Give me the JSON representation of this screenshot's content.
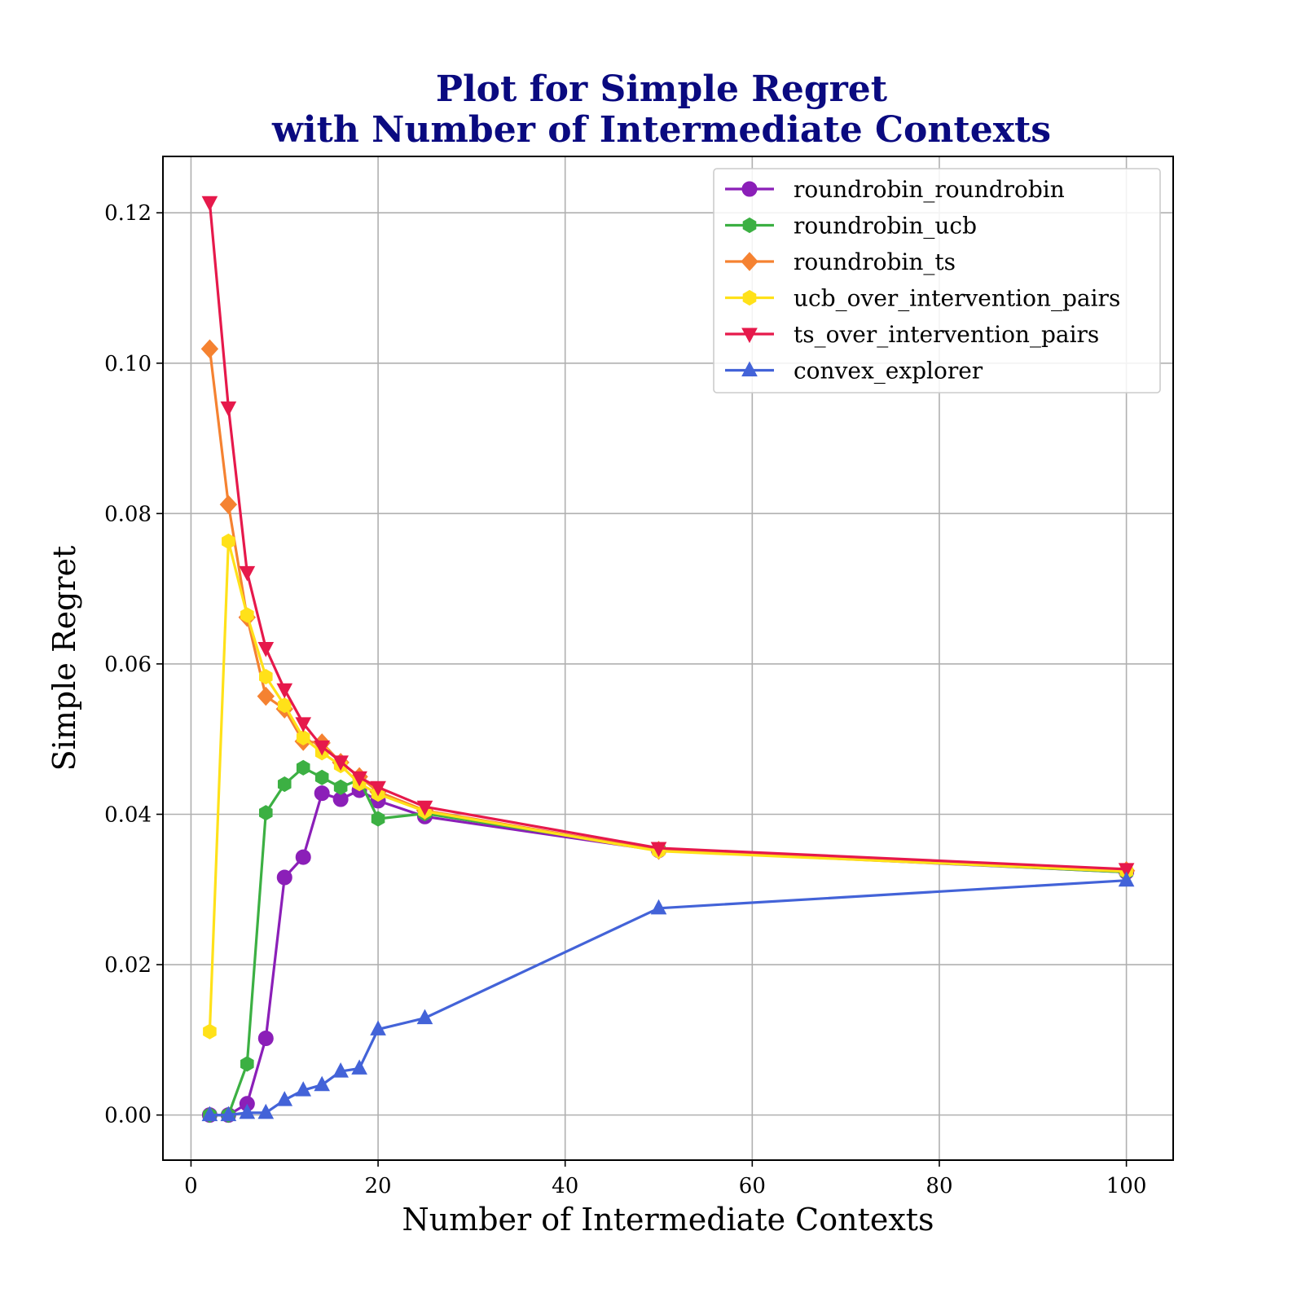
{
  "chart_data": {
    "type": "line",
    "title": [
      "Plot for Simple Regret",
      "with Number of Intermediate Contexts"
    ],
    "xlabel": "Number of Intermediate Contexts",
    "ylabel": "Simple Regret",
    "xlim": [
      -3,
      105
    ],
    "ylim": [
      -0.006,
      0.1275
    ],
    "xticks": [
      0,
      20,
      40,
      60,
      80,
      100
    ],
    "xtick_labels": [
      "0",
      "20",
      "40",
      "60",
      "80",
      "100"
    ],
    "yticks": [
      0.0,
      0.02,
      0.04,
      0.06,
      0.08,
      0.1,
      0.12
    ],
    "ytick_labels": [
      "0.00",
      "0.02",
      "0.04",
      "0.06",
      "0.08",
      "0.10",
      "0.12"
    ],
    "grid": true,
    "legend_position": "top-right",
    "series": [
      {
        "name": "roundrobin_roundrobin",
        "color": "#8b1fb8",
        "marker": "circle",
        "x": [
          2,
          4,
          6,
          8,
          10,
          12,
          14,
          16,
          18,
          20,
          25,
          50,
          100
        ],
        "y": [
          0.0,
          0.0,
          0.0015,
          0.0102,
          0.0316,
          0.0343,
          0.0428,
          0.042,
          0.0432,
          0.0418,
          0.0397,
          0.0352,
          0.0323
        ]
      },
      {
        "name": "roundrobin_ucb",
        "color": "#3cb043",
        "marker": "hexagon",
        "x": [
          2,
          4,
          6,
          8,
          10,
          12,
          14,
          16,
          18,
          20,
          25,
          50,
          100
        ],
        "y": [
          0.0,
          0.0,
          0.0068,
          0.0402,
          0.044,
          0.0462,
          0.0449,
          0.0436,
          0.0446,
          0.0394,
          0.0401,
          0.0353,
          0.0323
        ]
      },
      {
        "name": "roundrobin_ts",
        "color": "#f58231",
        "marker": "diamond",
        "x": [
          2,
          4,
          6,
          8,
          10,
          12,
          14,
          16,
          18,
          20,
          25,
          50,
          100
        ],
        "y": [
          0.1019,
          0.0812,
          0.0662,
          0.0557,
          0.054,
          0.0497,
          0.0495,
          0.0469,
          0.045,
          0.043,
          0.0405,
          0.0352,
          0.0325
        ]
      },
      {
        "name": "ucb_over_intervention_pairs",
        "color": "#ffe119",
        "marker": "hexagon",
        "x": [
          2,
          4,
          6,
          8,
          10,
          12,
          14,
          16,
          18,
          20,
          25,
          50,
          100
        ],
        "y": [
          0.0111,
          0.0763,
          0.0665,
          0.0583,
          0.0545,
          0.0502,
          0.0482,
          0.0465,
          0.0441,
          0.0427,
          0.0404,
          0.0351,
          0.0324
        ]
      },
      {
        "name": "ts_over_intervention_pairs",
        "color": "#e6194b",
        "marker": "triangle-down",
        "x": [
          2,
          4,
          6,
          8,
          10,
          12,
          14,
          16,
          18,
          20,
          25,
          50,
          100
        ],
        "y": [
          0.1214,
          0.0941,
          0.0722,
          0.0621,
          0.0566,
          0.0521,
          0.049,
          0.047,
          0.0449,
          0.0436,
          0.041,
          0.0355,
          0.0327
        ]
      },
      {
        "name": "convex_explorer",
        "color": "#4363d8",
        "marker": "triangle-up",
        "x": [
          2,
          4,
          6,
          8,
          10,
          12,
          14,
          16,
          18,
          20,
          25,
          50,
          100
        ],
        "y": [
          0.0,
          0.0,
          0.0003,
          0.0003,
          0.002,
          0.0033,
          0.004,
          0.0058,
          0.0062,
          0.0114,
          0.0129,
          0.0275,
          0.0312
        ]
      }
    ]
  }
}
